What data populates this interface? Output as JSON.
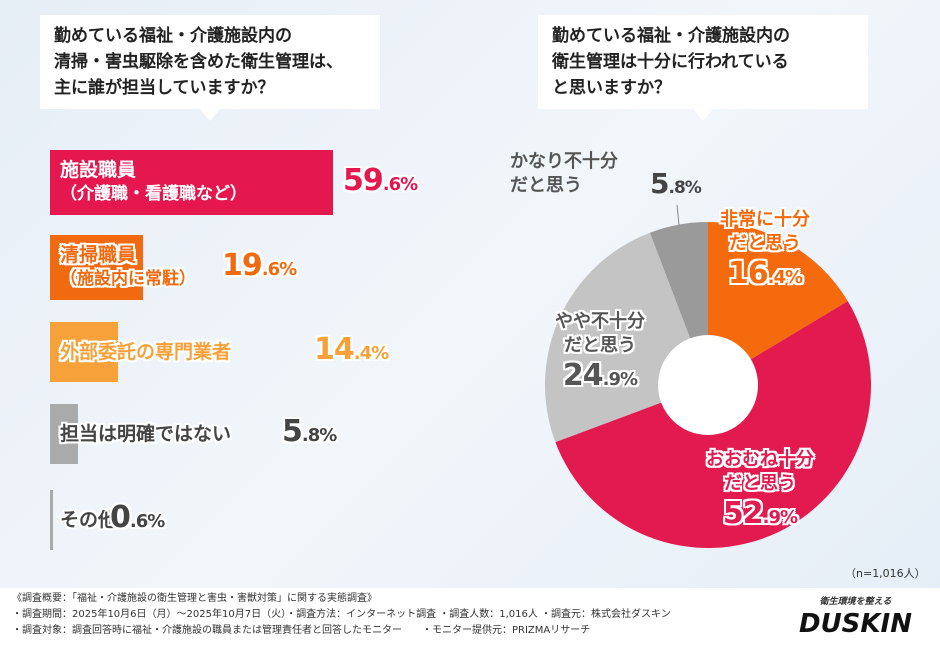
{
  "left": {
    "question": [
      "勤めている福祉・介護施設内の",
      "清掃・害虫駆除を含めた衛生管理は、",
      "主に誰が担当していますか？"
    ],
    "chart_data": {
      "type": "bar",
      "orientation": "horizontal",
      "categories": [
        "施設職員（介護職・看護職など）",
        "清掃職員（施設内に常駐）",
        "外部委託の専門業者",
        "担当は明確ではない",
        "その他"
      ],
      "values": [
        59.6,
        19.6,
        14.4,
        5.8,
        0.6
      ],
      "unit": "%",
      "colors": [
        "#e5174f",
        "#f26a10",
        "#f6a13a",
        "#aaaaaa",
        "#aaaaaa"
      ]
    },
    "labels": [
      [
        "施設職員",
        "（介護職・看護職など）"
      ],
      [
        "清掃職員",
        "（施設内に常駐）"
      ],
      [
        "外部委託の専門業者"
      ],
      [
        "担当は明確ではない"
      ],
      [
        "その他"
      ]
    ],
    "value_labels": [
      [
        "59",
        ".6%"
      ],
      [
        "19",
        ".6%"
      ],
      [
        "14",
        ".4%"
      ],
      [
        "5",
        ".8%"
      ],
      [
        "0",
        ".6%"
      ]
    ]
  },
  "right": {
    "question": [
      "勤めている福祉・介護施設内の",
      "衛生管理は十分に行われている",
      "と思いますか？"
    ],
    "chart_data": {
      "type": "pie",
      "donut": true,
      "categories": [
        "非常に十分だと思う",
        "おおむね十分だと思う",
        "やや不十分だと思う",
        "かなり不十分だと思う"
      ],
      "values": [
        16.4,
        52.9,
        24.9,
        5.8
      ],
      "unit": "%",
      "colors": [
        "#f56a0c",
        "#e31a50",
        "#c4c4c4",
        "#9a9a9a"
      ]
    },
    "labels": [
      [
        "非常に十分",
        "だと思う"
      ],
      [
        "おおむね十分",
        "だと思う"
      ],
      [
        "やや不十分",
        "だと思う"
      ],
      [
        "かなり不十分",
        "だと思う"
      ]
    ],
    "value_labels": [
      [
        "16",
        ".4%"
      ],
      [
        "52",
        ".9%"
      ],
      [
        "24",
        ".9%"
      ],
      [
        "5",
        ".8%"
      ]
    ],
    "n_note": "（n=1,016人）"
  },
  "footer": {
    "lines": [
      "《調査概要：「福祉・介護施設の衛生管理と害虫・害獣対策」に関する実態調査》",
      "・調査期間：2025年10月6日（月）～2025年10月7日（火）・調査方法：インターネット調査 ・調査人数：1,016人 ・調査元：株式会社ダスキン",
      "・調査対象：調査回答時に福祉・介護施設の職員または管理責任者と回答したモニター　　・モニター提供元：PRIZMAリサーチ"
    ],
    "logo_tagline": "衛生環境を整える",
    "logo": "DUSKIN"
  }
}
